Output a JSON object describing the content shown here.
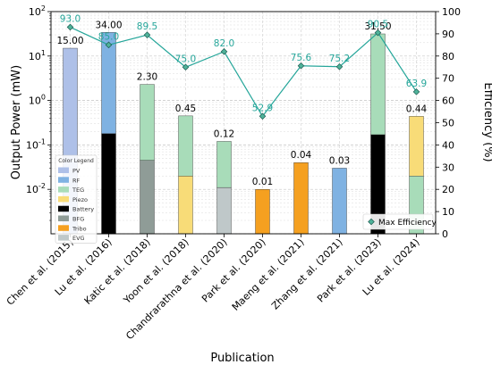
{
  "chart_data": {
    "type": "bar",
    "xlabel": "Publication",
    "ylabel": "Output Power (mW)",
    "y2label": "Efficiency (%)",
    "yscale": "log",
    "ylim": [
      0.001,
      100
    ],
    "y2lim": [
      0,
      100
    ],
    "yticks": [
      {
        "base": "10",
        "exp": "-2",
        "value": 0.01
      },
      {
        "base": "10",
        "exp": "-1",
        "value": 0.1
      },
      {
        "base": "10",
        "exp": "0",
        "value": 1
      },
      {
        "base": "10",
        "exp": "1",
        "value": 10
      },
      {
        "base": "10",
        "exp": "2",
        "value": 100
      }
    ],
    "y2ticks": [
      "0",
      "10",
      "20",
      "30",
      "40",
      "50",
      "60",
      "70",
      "80",
      "90",
      "100"
    ],
    "grid": true,
    "categories": [
      "Chen et al. (2015)",
      "Lu et al. (2016)",
      "Katic et al. (2018)",
      "Yoon et al. (2018)",
      "Chandrarathna et al. (2020)",
      "Park et al. (2020)",
      "Maeng et al. (2021)",
      "Zhang et al. (2021)",
      "Park et al. (2023)",
      "Lu et al. (2024)"
    ],
    "colors": {
      "PV": "#aec0e8",
      "RF": "#7fb2e2",
      "TEG": "#a8dcb9",
      "Piezo": "#f8dc78",
      "Battery": "#000000",
      "BFG": "#8f9c97",
      "Tribo": "#f5a020",
      "EVG": "#bfc8c9",
      "efficiency": "#26a69a"
    },
    "legend": {
      "title": "Color Legend",
      "position": "left",
      "entries": [
        "PV",
        "RF",
        "TEG",
        "Piezo",
        "Battery",
        "BFG",
        "Tribo",
        "EVG"
      ]
    },
    "bars": [
      {
        "total": 15.0,
        "total_label": "15.00",
        "segments": [
          {
            "source": "PV",
            "from": 0.001,
            "to": 15.0
          }
        ]
      },
      {
        "total": 34.0,
        "total_label": "34.00",
        "segments": [
          {
            "source": "Battery",
            "from": 0.001,
            "to": 0.18
          },
          {
            "source": "RF",
            "from": 0.18,
            "to": 34.0
          }
        ]
      },
      {
        "total": 2.3,
        "total_label": "2.30",
        "segments": [
          {
            "source": "BFG",
            "from": 0.001,
            "to": 0.045
          },
          {
            "source": "TEG",
            "from": 0.045,
            "to": 2.3
          }
        ]
      },
      {
        "total": 0.45,
        "total_label": "0.45",
        "segments": [
          {
            "source": "Piezo",
            "from": 0.001,
            "to": 0.02
          },
          {
            "source": "TEG",
            "from": 0.02,
            "to": 0.45
          }
        ]
      },
      {
        "total": 0.12,
        "total_label": "0.12",
        "segments": [
          {
            "source": "EVG",
            "from": 0.001,
            "to": 0.011
          },
          {
            "source": "TEG",
            "from": 0.011,
            "to": 0.12
          }
        ]
      },
      {
        "total": 0.01,
        "total_label": "0.01",
        "segments": [
          {
            "source": "Tribo",
            "from": 0.001,
            "to": 0.01
          }
        ]
      },
      {
        "total": 0.04,
        "total_label": "0.04",
        "segments": [
          {
            "source": "Tribo",
            "from": 0.001,
            "to": 0.04
          }
        ]
      },
      {
        "total": 0.03,
        "total_label": "0.03",
        "segments": [
          {
            "source": "RF",
            "from": 0.001,
            "to": 0.03
          }
        ]
      },
      {
        "total": 31.5,
        "total_label": "31.50",
        "segments": [
          {
            "source": "Battery",
            "from": 0.001,
            "to": 0.17
          },
          {
            "source": "TEG",
            "from": 0.17,
            "to": 31.5
          }
        ]
      },
      {
        "total": 0.44,
        "total_label": "0.44",
        "segments": [
          {
            "source": "TEG",
            "from": 0.001,
            "to": 0.02
          },
          {
            "source": "Piezo",
            "from": 0.02,
            "to": 0.44
          }
        ]
      }
    ],
    "efficiency": {
      "name": "Max Efficiency",
      "values": [
        93.0,
        85.0,
        89.5,
        75.0,
        82.0,
        52.9,
        75.6,
        75.2,
        90.5,
        63.9
      ],
      "labels": [
        "93.0",
        "85.0",
        "89.5",
        "75.0",
        "82.0",
        "52.9",
        "75.6",
        "75.2",
        "90.5",
        "63.9"
      ]
    },
    "efficiency_legend_position": "lower-right"
  }
}
